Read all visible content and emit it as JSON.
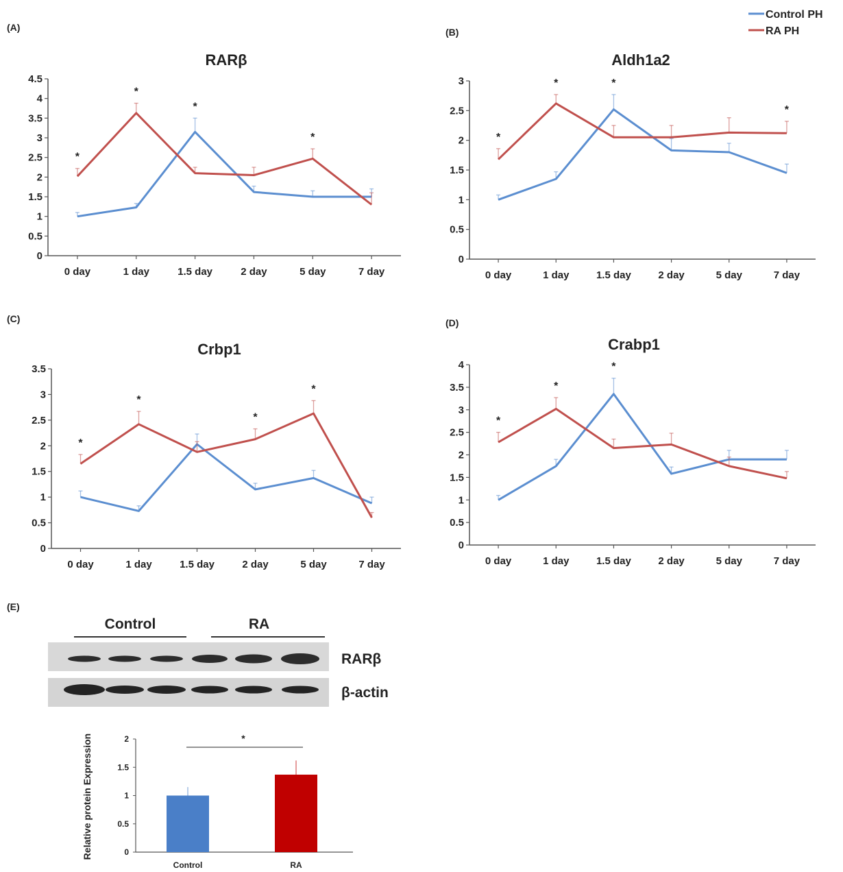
{
  "legend": {
    "entries": [
      {
        "name": "Control PH",
        "color": "#5b8ed0"
      },
      {
        "name": "RA PH",
        "color": "#c0504d"
      }
    ]
  },
  "significance_marker": "*",
  "chart_data": [
    {
      "panel_label": "(A)",
      "type": "line",
      "title": "RARβ",
      "categories": [
        "0 day",
        "1 day",
        "1.5 day",
        "2 day",
        "5 day",
        "7 day"
      ],
      "ylim": [
        0,
        4.5
      ],
      "yticks": [
        "0",
        "0.5",
        "1",
        "1.5",
        "2",
        "2.5",
        "3",
        "3.5",
        "4",
        "4.5"
      ],
      "series": [
        {
          "name": "Control PH",
          "values": [
            1.0,
            1.23,
            3.15,
            1.62,
            1.5,
            1.5
          ],
          "errors": [
            0.1,
            0.1,
            0.35,
            0.15,
            0.15,
            0.2
          ]
        },
        {
          "name": "RA PH",
          "values": [
            2.02,
            3.63,
            2.1,
            2.05,
            2.47,
            1.3
          ],
          "errors": [
            0.2,
            0.25,
            0.15,
            0.2,
            0.25,
            0.3
          ]
        }
      ],
      "significant": [
        true,
        true,
        true,
        false,
        true,
        false
      ],
      "grid": false
    },
    {
      "panel_label": "(B)",
      "type": "line",
      "title": "Aldh1a2",
      "categories": [
        "0 day",
        "1 day",
        "1.5 day",
        "2 day",
        "5 day",
        "7 day"
      ],
      "ylim": [
        0,
        3
      ],
      "yticks": [
        "0",
        "0.5",
        "1",
        "1.5",
        "2",
        "2.5",
        "3"
      ],
      "series": [
        {
          "name": "Control PH",
          "values": [
            1.0,
            1.35,
            2.52,
            1.83,
            1.8,
            1.45
          ],
          "errors": [
            0.08,
            0.12,
            0.25,
            0.2,
            0.15,
            0.15
          ]
        },
        {
          "name": "RA PH",
          "values": [
            1.68,
            2.62,
            2.05,
            2.05,
            2.13,
            2.12
          ],
          "errors": [
            0.18,
            0.15,
            0.2,
            0.2,
            0.25,
            0.2
          ]
        }
      ],
      "significant": [
        true,
        true,
        true,
        false,
        false,
        true
      ],
      "grid": false
    },
    {
      "panel_label": "(C)",
      "type": "line",
      "title": "Crbp1",
      "categories": [
        "0 day",
        "1 day",
        "1.5 day",
        "2 day",
        "5 day",
        "7 day"
      ],
      "ylim": [
        0,
        3.5
      ],
      "yticks": [
        "0",
        "0.5",
        "1",
        "1.5",
        "2",
        "2.5",
        "3",
        "3.5"
      ],
      "series": [
        {
          "name": "Control PH",
          "values": [
            1.0,
            0.73,
            2.03,
            1.15,
            1.37,
            0.88
          ],
          "errors": [
            0.12,
            0.1,
            0.2,
            0.12,
            0.15,
            0.12
          ]
        },
        {
          "name": "RA PH",
          "values": [
            1.65,
            2.42,
            1.88,
            2.13,
            2.63,
            0.6
          ],
          "errors": [
            0.18,
            0.25,
            0.2,
            0.2,
            0.25,
            0.1
          ]
        }
      ],
      "significant": [
        true,
        true,
        false,
        true,
        true,
        false
      ],
      "grid": false
    },
    {
      "panel_label": "(D)",
      "type": "line",
      "title": "Crabp1",
      "categories": [
        "0 day",
        "1 day",
        "1.5 day",
        "2 day",
        "5 day",
        "7 day"
      ],
      "ylim": [
        0,
        4
      ],
      "yticks": [
        "0",
        "0.5",
        "1",
        "1.5",
        "2",
        "2.5",
        "3",
        "3.5",
        "4"
      ],
      "series": [
        {
          "name": "Control PH",
          "values": [
            1.0,
            1.75,
            3.35,
            1.58,
            1.9,
            1.9
          ],
          "errors": [
            0.1,
            0.15,
            0.35,
            0.15,
            0.2,
            0.2
          ]
        },
        {
          "name": "RA PH",
          "values": [
            2.28,
            3.02,
            2.15,
            2.23,
            1.75,
            1.48
          ],
          "errors": [
            0.22,
            0.25,
            0.2,
            0.25,
            0.2,
            0.15
          ]
        }
      ],
      "significant": [
        true,
        true,
        true,
        false,
        false,
        false
      ],
      "grid": false
    },
    {
      "panel_label": "(E)",
      "type": "bar",
      "categories": [
        "Control",
        "RA"
      ],
      "values": [
        1.0,
        1.37
      ],
      "errors": [
        0.15,
        0.25
      ],
      "colors": [
        "#4a7fc8",
        "#c00000"
      ],
      "ylabel": "Relative protein Expression",
      "ylim": [
        0,
        2
      ],
      "yticks": [
        "0",
        "0.5",
        "1",
        "1.5",
        "2"
      ],
      "significant": true
    }
  ],
  "blot": {
    "group_labels": [
      "Control",
      "RA"
    ],
    "band_labels": [
      "RARβ",
      "β-actin"
    ]
  }
}
